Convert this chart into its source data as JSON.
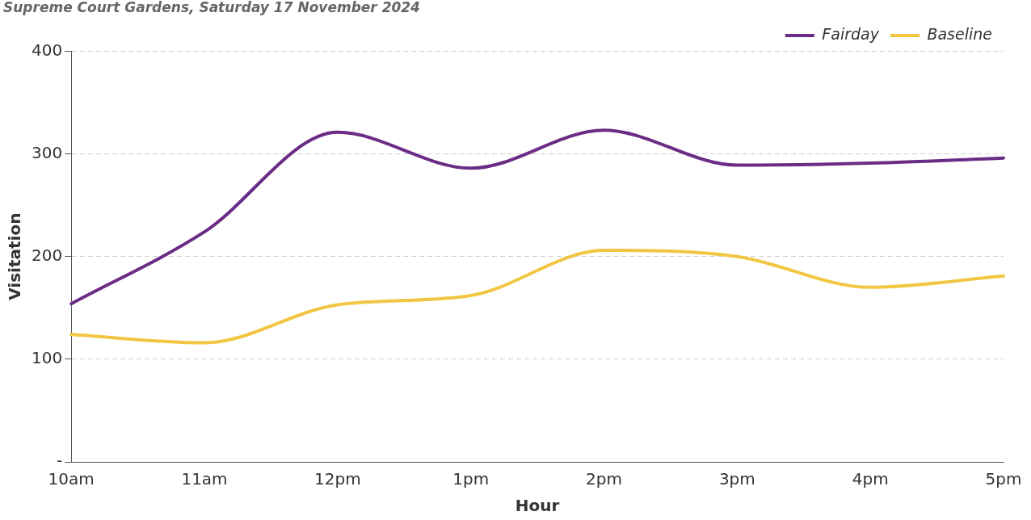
{
  "chart_data": {
    "type": "line",
    "subtitle": "Supreme Court Gardens, Saturday 17 November 2024",
    "xlabel": "Hour",
    "ylabel": "Visitation",
    "categories": [
      "10am",
      "11am",
      "12pm",
      "1pm",
      "2pm",
      "3pm",
      "4pm",
      "5pm"
    ],
    "series": [
      {
        "name": "Fairday",
        "color": "#6b2c85",
        "values": [
          154,
          224,
          321,
          286,
          323,
          289,
          291,
          296
        ]
      },
      {
        "name": "Baseline",
        "color": "#f2c643",
        "values": [
          124,
          116,
          153,
          162,
          206,
          200,
          170,
          181
        ]
      }
    ],
    "ylim": [
      0,
      400
    ],
    "yticks": [
      {
        "value": 0,
        "label": "-"
      },
      100,
      200,
      300,
      400
    ],
    "grid": "y",
    "legend": "top right",
    "marker": "none",
    "line_style": "solid"
  }
}
